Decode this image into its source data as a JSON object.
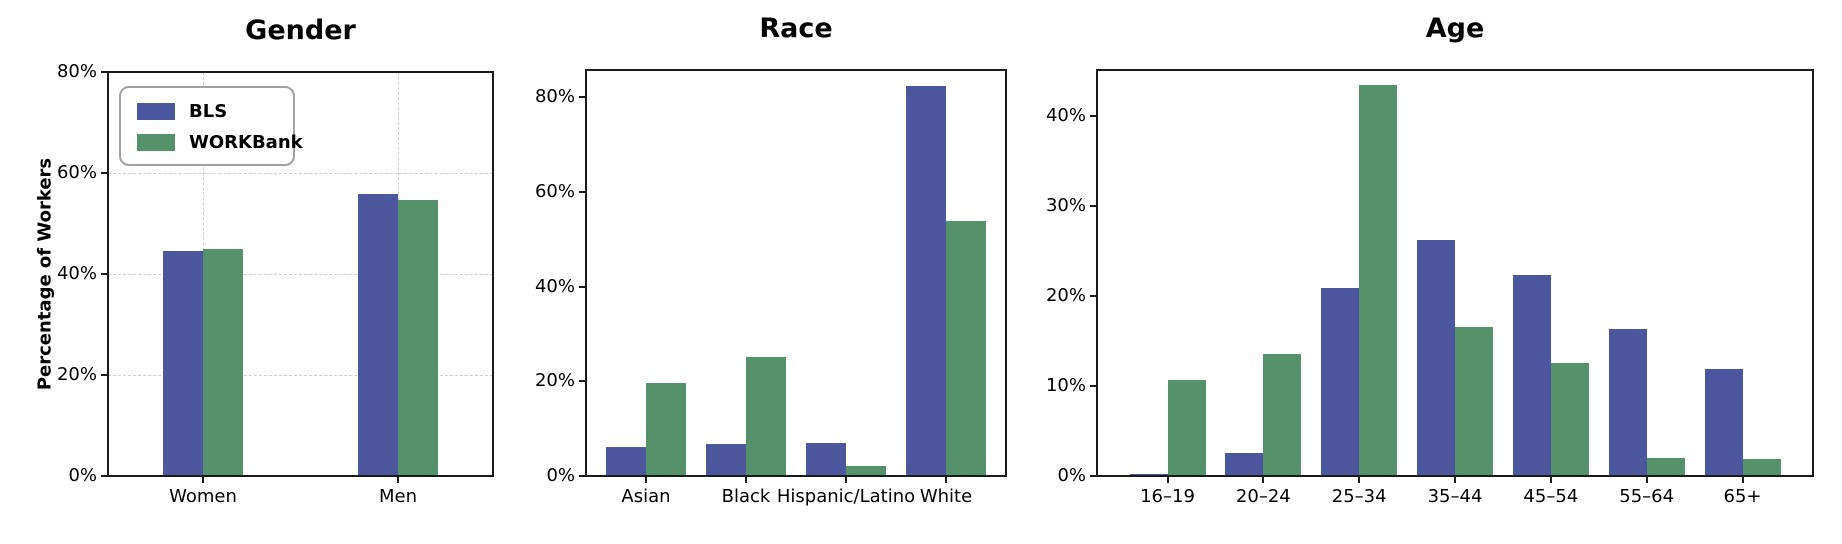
{
  "figure_title": "",
  "colors": {
    "bls": "#4C579D",
    "workbank": "#55916B",
    "grid": "#cccccc",
    "spine": "#1a1a1a",
    "legend_border": "#a0a0a0"
  },
  "legend": {
    "position": "upper left",
    "items": [
      "BLS",
      "WORKBank"
    ]
  },
  "chart_data": [
    {
      "type": "bar",
      "title": "Gender",
      "ylabel": "Percentage of Workers",
      "ylim": [
        0,
        80
      ],
      "yticks": [
        0,
        20,
        40,
        60,
        80
      ],
      "ytick_suffix": "%",
      "grid": true,
      "legend_position": "upper left",
      "categories": [
        "Women",
        "Men"
      ],
      "series": [
        {
          "name": "BLS",
          "color": "#4C579D",
          "values": [
            44.5,
            55.9
          ]
        },
        {
          "name": "WORKBank",
          "color": "#55916B",
          "values": [
            44.9,
            54.6
          ]
        }
      ]
    },
    {
      "type": "bar",
      "title": "Race",
      "ylabel": "",
      "ylim": [
        0,
        85.8
      ],
      "yticks": [
        0,
        20,
        40,
        60,
        80
      ],
      "ytick_suffix": "%",
      "grid": false,
      "categories": [
        "Asian",
        "Black",
        "Hispanic/Latino",
        "White"
      ],
      "series": [
        {
          "name": "BLS",
          "color": "#4C579D",
          "values": [
            6.1,
            6.8,
            7.0,
            82.5
          ]
        },
        {
          "name": "WORKBank",
          "color": "#55916B",
          "values": [
            19.7,
            25.2,
            2.1,
            53.8
          ]
        }
      ]
    },
    {
      "type": "bar",
      "title": "Age",
      "ylabel": "",
      "ylim": [
        0,
        45.1
      ],
      "yticks": [
        0,
        10,
        20,
        30,
        40
      ],
      "ytick_suffix": "%",
      "grid": false,
      "categories": [
        "16–19",
        "20–24",
        "25–34",
        "35–44",
        "45–54",
        "55–64",
        "65+"
      ],
      "series": [
        {
          "name": "BLS",
          "color": "#4C579D",
          "values": [
            0.2,
            2.6,
            20.9,
            26.2,
            22.3,
            16.3,
            11.9
          ]
        },
        {
          "name": "WORKBank",
          "color": "#55916B",
          "values": [
            10.7,
            13.6,
            43.4,
            16.6,
            12.6,
            2.0,
            1.9
          ]
        }
      ]
    }
  ]
}
